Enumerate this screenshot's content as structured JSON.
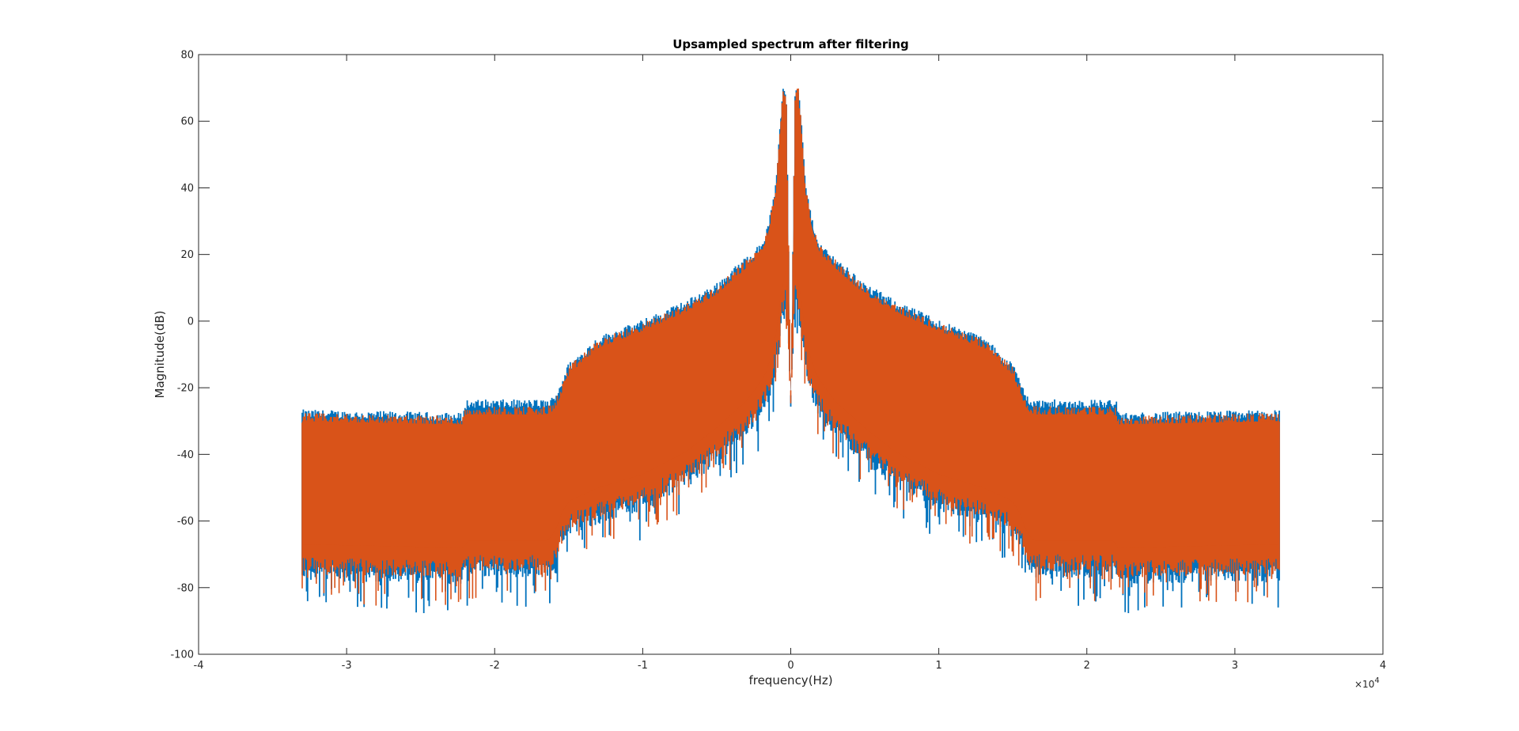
{
  "chart_data": {
    "type": "line",
    "title": "Upsampled spectrum after filtering",
    "xlabel": "frequency(Hz)",
    "ylabel": "Magnitude(dB)",
    "x_exponent_label": "×10",
    "x_exponent_power": "4",
    "xlim": [
      -4,
      4
    ],
    "ylim": [
      -100,
      80
    ],
    "x_ticks": [
      "-4",
      "-3",
      "-2",
      "-1",
      "0",
      "1",
      "2",
      "3",
      "4"
    ],
    "y_ticks": [
      "80",
      "60",
      "40",
      "20",
      "0",
      "-20",
      "-40",
      "-60",
      "-80",
      "-100"
    ],
    "x_tick_values": [
      -4,
      -3,
      -2,
      -1,
      0,
      1,
      2,
      3,
      4
    ],
    "y_tick_values": [
      80,
      60,
      40,
      20,
      0,
      -20,
      -40,
      -60,
      -80,
      -100
    ],
    "grid": false,
    "x_unit_scale": 10000,
    "envelope_x": [
      0,
      0.03,
      0.05,
      0.07,
      0.1,
      0.15,
      0.2,
      0.3,
      0.5,
      0.7,
      1.0,
      1.3,
      1.5,
      1.55,
      1.6,
      1.65,
      2.2,
      2.21,
      3.3
    ],
    "series": [
      {
        "color": "#0072BD",
        "upper": [
          -22,
          68,
          70,
          60,
          40,
          28,
          22,
          18,
          10,
          5,
          -1,
          -6,
          -14,
          -19,
          -24,
          -25,
          -25,
          -29,
          -28
        ],
        "lower": [
          -22,
          10,
          5,
          0,
          -10,
          -20,
          -25,
          -30,
          -38,
          -45,
          -52,
          -56,
          -60,
          -64,
          -70,
          -72,
          -72,
          -74,
          -73
        ]
      },
      {
        "color": "#D95319",
        "upper": [
          -22,
          67,
          69,
          59,
          39,
          27,
          21,
          17,
          9,
          4,
          -2,
          -7,
          -15,
          -21,
          -26,
          -27,
          -27,
          -30,
          -29
        ],
        "lower": [
          -22,
          12,
          8,
          3,
          -8,
          -18,
          -22,
          -28,
          -36,
          -43,
          -50,
          -54,
          -58,
          -62,
          -68,
          -70,
          -70,
          -72,
          -71
        ]
      }
    ]
  }
}
